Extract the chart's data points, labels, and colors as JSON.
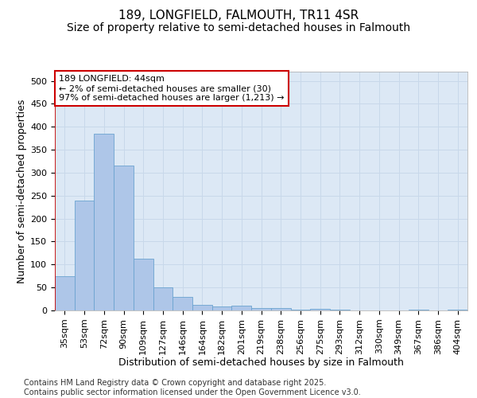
{
  "title_line1": "189, LONGFIELD, FALMOUTH, TR11 4SR",
  "title_line2": "Size of property relative to semi-detached houses in Falmouth",
  "xlabel": "Distribution of semi-detached houses by size in Falmouth",
  "ylabel": "Number of semi-detached properties",
  "categories": [
    "35sqm",
    "53sqm",
    "72sqm",
    "90sqm",
    "109sqm",
    "127sqm",
    "146sqm",
    "164sqm",
    "182sqm",
    "201sqm",
    "219sqm",
    "238sqm",
    "256sqm",
    "275sqm",
    "293sqm",
    "312sqm",
    "330sqm",
    "349sqm",
    "367sqm",
    "386sqm",
    "404sqm"
  ],
  "values": [
    75,
    240,
    385,
    315,
    113,
    50,
    30,
    13,
    8,
    10,
    6,
    5,
    1,
    4,
    1,
    0,
    0,
    0,
    2,
    0,
    2
  ],
  "bar_color": "#aec6e8",
  "bar_edge_color": "#6ba3d0",
  "highlight_bar_index": 0,
  "highlight_line_color": "#cc0000",
  "annotation_text": "189 LONGFIELD: 44sqm\n← 2% of semi-detached houses are smaller (30)\n97% of semi-detached houses are larger (1,213) →",
  "annotation_box_color": "#ffffff",
  "annotation_box_edge": "#cc0000",
  "ylim": [
    0,
    520
  ],
  "yticks": [
    0,
    50,
    100,
    150,
    200,
    250,
    300,
    350,
    400,
    450,
    500
  ],
  "grid_color": "#c8d8ea",
  "fig_bg_color": "#ffffff",
  "plot_bg_color": "#dce8f5",
  "footer_text": "Contains HM Land Registry data © Crown copyright and database right 2025.\nContains public sector information licensed under the Open Government Licence v3.0.",
  "title_fontsize": 11,
  "subtitle_fontsize": 10,
  "tick_fontsize": 8,
  "label_fontsize": 9,
  "footer_fontsize": 7
}
